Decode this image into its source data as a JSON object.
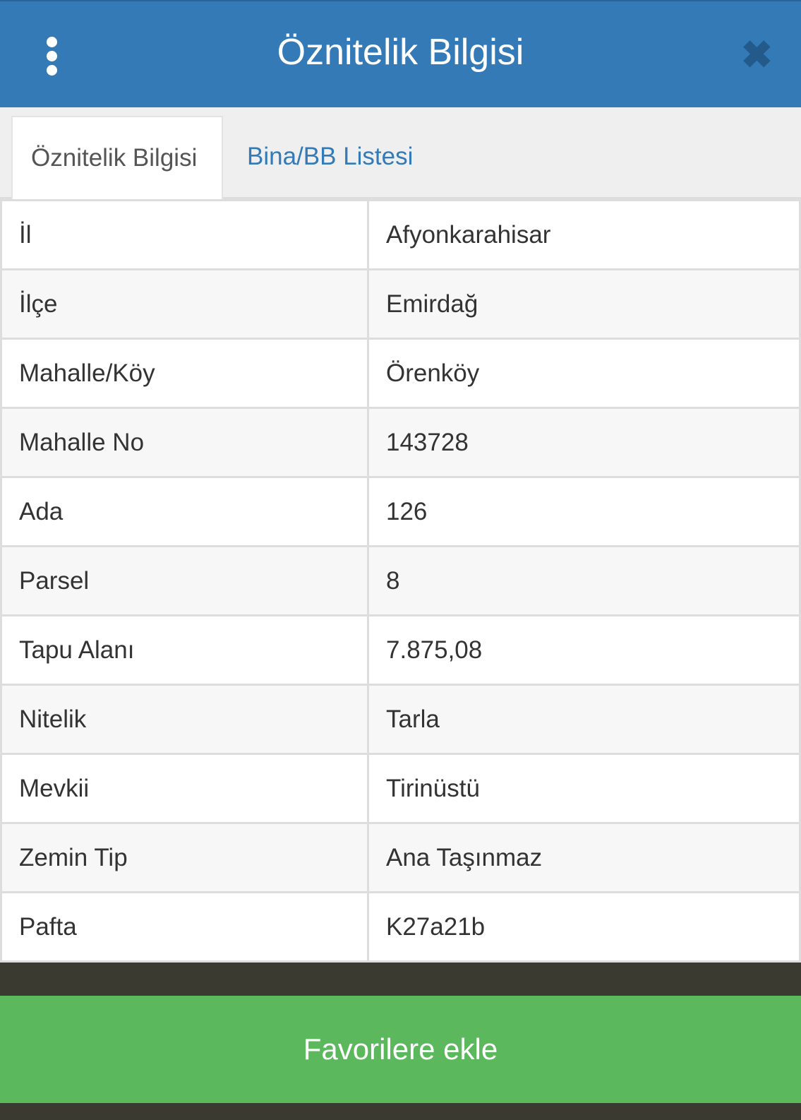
{
  "header": {
    "title": "Öznitelik Bilgisi",
    "menu_icon": "more-vertical-icon",
    "close_icon": "close-icon"
  },
  "tabs": [
    {
      "label": "Öznitelik Bilgisi",
      "active": true
    },
    {
      "label": "Bina/BB Listesi",
      "active": false
    }
  ],
  "rows": [
    {
      "label": "İl",
      "value": "Afyonkarahisar"
    },
    {
      "label": "İlçe",
      "value": "Emirdağ"
    },
    {
      "label": "Mahalle/Köy",
      "value": "Örenköy"
    },
    {
      "label": "Mahalle No",
      "value": "143728"
    },
    {
      "label": "Ada",
      "value": "126"
    },
    {
      "label": "Parsel",
      "value": "8"
    },
    {
      "label": "Tapu Alanı",
      "value": "7.875,08"
    },
    {
      "label": "Nitelik",
      "value": "Tarla"
    },
    {
      "label": "Mevkii",
      "value": "Tirinüstü"
    },
    {
      "label": "Zemin Tip",
      "value": "Ana Taşınmaz"
    },
    {
      "label": "Pafta",
      "value": "K27a21b"
    }
  ],
  "footer": {
    "favorite_label": "Favorilere ekle"
  },
  "colors": {
    "header": "#337ab7",
    "button": "#5cb85c",
    "tab_link": "#337ab7"
  }
}
